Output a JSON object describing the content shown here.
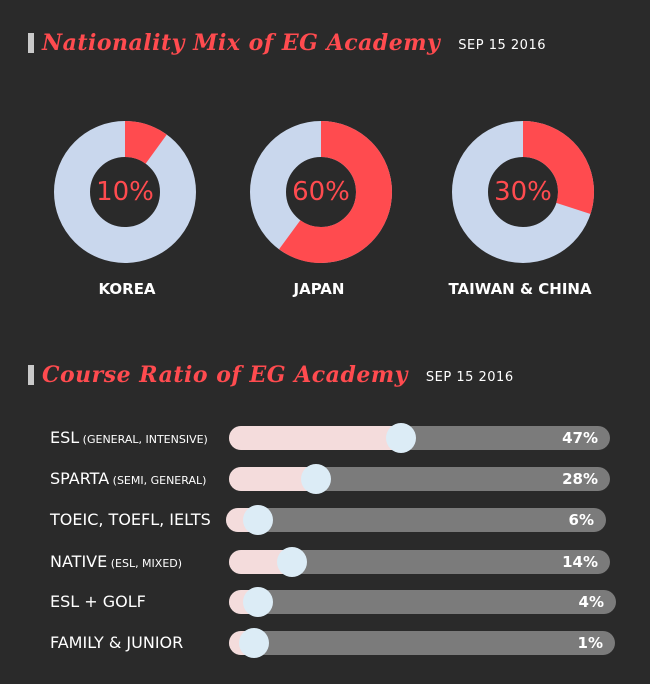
{
  "colors": {
    "accent": "#ff4b4f",
    "donut_rest": "#c9d7ed",
    "bar_track": "#7b7b7b",
    "bar_fill": "#f4dcdc",
    "knob": "#dcecf6"
  },
  "nationality": {
    "title": "Nationality Mix of EG Academy",
    "date": "SEP 15 2016"
  },
  "course": {
    "title": "Course Ratio of EG Academy",
    "date": "SEP 15 2016"
  },
  "chart_data": [
    {
      "type": "pie",
      "categories": [
        "KOREA",
        "JAPAN",
        "TAIWAN & CHINA"
      ],
      "values": [
        10,
        60,
        30
      ],
      "labels": [
        "10%",
        "60%",
        "30%"
      ]
    },
    {
      "type": "bar",
      "categories": [
        "ESL",
        "SPARTA",
        "TOEIC, TOEFL, IELTS",
        "NATIVE",
        "ESL + GOLF",
        "FAMILY & JUNIOR"
      ],
      "subtitles": [
        "(GENERAL, INTENSIVE)",
        "(SEMI, GENERAL)",
        "",
        "(ESL, MIXED)",
        "",
        ""
      ],
      "values": [
        47,
        28,
        6,
        14,
        4,
        1
      ],
      "labels": [
        "47%",
        "28%",
        "6%",
        "14%",
        "4%",
        "1%"
      ]
    }
  ]
}
